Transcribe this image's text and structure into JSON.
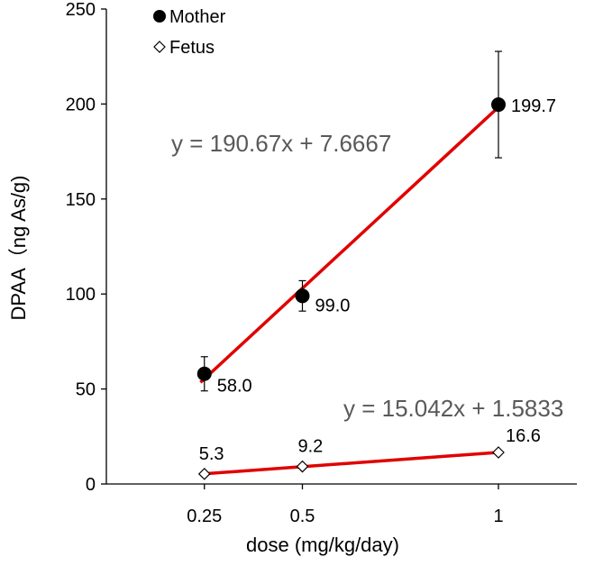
{
  "chart_data": {
    "type": "scatter",
    "xlabel": "dose (mg/kg/day)",
    "ylabel": "DPAA（ng As/g)",
    "x_ticks": [
      "0.25",
      "0.5",
      "1"
    ],
    "x_values": [
      0.25,
      0.5,
      1
    ],
    "xlim": [
      0,
      1.2
    ],
    "ylim": [
      0,
      250
    ],
    "y_ticks": [
      0,
      50,
      100,
      150,
      200,
      250
    ],
    "grid": false,
    "legend_position": "top-left",
    "colors": {
      "trendline": "#e00000",
      "mother_marker": "#000000",
      "fetus_marker": "#ffffff",
      "equation": "#595959"
    },
    "series": [
      {
        "name": "Mother",
        "marker": "filled-circle",
        "x": [
          0.25,
          0.5,
          1
        ],
        "y": [
          58.0,
          99.0,
          199.7
        ],
        "labels": [
          "58.0",
          "99.0",
          "199.7"
        ],
        "error": [
          9,
          8,
          28
        ],
        "trendline": {
          "slope": 190.67,
          "intercept": 7.6667,
          "equation": "y = 190.67x + 7.6667"
        }
      },
      {
        "name": "Fetus",
        "marker": "open-diamond",
        "x": [
          0.25,
          0.5,
          1
        ],
        "y": [
          5.3,
          9.2,
          16.6
        ],
        "labels": [
          "5.3",
          "9.2",
          "16.6"
        ],
        "error": [
          0,
          0,
          0
        ],
        "trendline": {
          "slope": 15.042,
          "intercept": 1.5833,
          "equation": "y = 15.042x + 1.5833"
        }
      }
    ]
  }
}
